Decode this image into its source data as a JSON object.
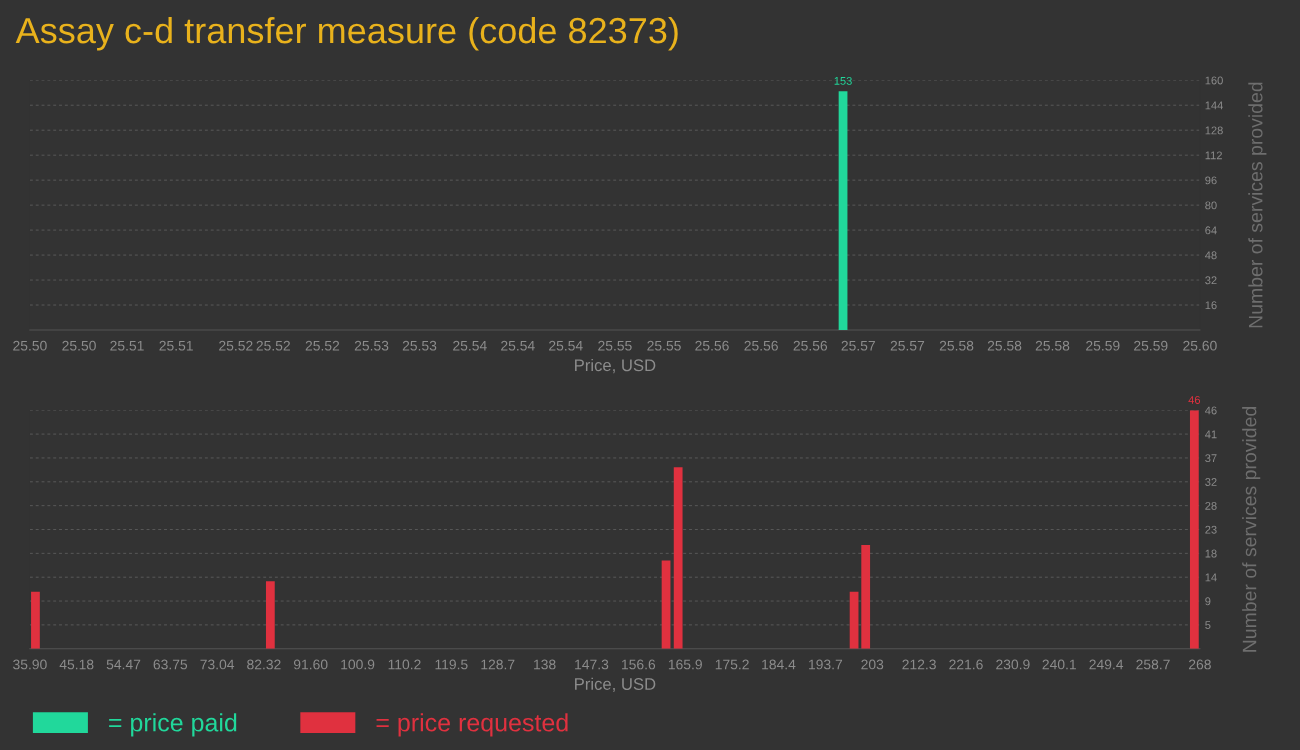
{
  "chart_data": [
    {
      "type": "bar",
      "title": "Assay c-d transfer measure (code 82373)",
      "xlabel": "Price, USD",
      "ylabel": "Number of services provided",
      "x": [
        25.567
      ],
      "series": [
        {
          "name": "= price paid",
          "color": "#21d89b",
          "values": [
            153
          ],
          "value_labels": [
            "153"
          ]
        }
      ],
      "xlim": [
        25.4975,
        25.5975
      ],
      "xticks": [
        {
          "value": 25.4975,
          "label": "25.50"
        },
        {
          "value": 25.5017,
          "label": "25.50"
        },
        {
          "value": 25.5058,
          "label": "25.51"
        },
        {
          "value": 25.51,
          "label": "25.51"
        },
        {
          "value": 25.5151,
          "label": "25.52"
        },
        {
          "value": 25.5183,
          "label": "25.52"
        },
        {
          "value": 25.5225,
          "label": "25.52"
        },
        {
          "value": 25.5267,
          "label": "25.53"
        },
        {
          "value": 25.5308,
          "label": "25.53"
        },
        {
          "value": 25.5351,
          "label": "25.54"
        },
        {
          "value": 25.5392,
          "label": "25.54"
        },
        {
          "value": 25.5433,
          "label": "25.54"
        },
        {
          "value": 25.5475,
          "label": "25.55"
        },
        {
          "value": 25.5517,
          "label": "25.55"
        },
        {
          "value": 25.5558,
          "label": "25.56"
        },
        {
          "value": 25.56,
          "label": "25.56"
        },
        {
          "value": 25.5642,
          "label": "25.56"
        },
        {
          "value": 25.5683,
          "label": "25.57"
        },
        {
          "value": 25.5725,
          "label": "25.57"
        },
        {
          "value": 25.5767,
          "label": "25.58"
        },
        {
          "value": 25.5808,
          "label": "25.58"
        },
        {
          "value": 25.5849,
          "label": "25.58"
        },
        {
          "value": 25.5892,
          "label": "25.59"
        },
        {
          "value": 25.5933,
          "label": "25.59"
        },
        {
          "value": 25.5975,
          "label": "25.60"
        }
      ],
      "ylim": [
        0,
        160
      ],
      "yticks": [
        16,
        32,
        48,
        64,
        80,
        96,
        112,
        128,
        144,
        160
      ],
      "grid": "y",
      "legend": "bottom left"
    },
    {
      "type": "bar",
      "xlabel": "Price, USD",
      "ylabel": "Number of services provided",
      "x": [
        37.0,
        83.6,
        162.1,
        164.5,
        199.4,
        201.7,
        266.9
      ],
      "series": [
        {
          "name": "= price requested",
          "color": "#e0313f",
          "values": [
            11,
            13,
            17,
            35,
            11,
            20,
            46
          ],
          "value_labels": [
            null,
            null,
            null,
            null,
            null,
            null,
            "46"
          ]
        }
      ],
      "xlim": [
        35.9,
        268
      ],
      "xticks": [
        {
          "value": 35.9,
          "label": "35.90"
        },
        {
          "value": 45.18,
          "label": "45.18"
        },
        {
          "value": 54.47,
          "label": "54.47"
        },
        {
          "value": 63.75,
          "label": "63.75"
        },
        {
          "value": 73.04,
          "label": "73.04"
        },
        {
          "value": 82.32,
          "label": "82.32"
        },
        {
          "value": 91.6,
          "label": "91.60"
        },
        {
          "value": 100.9,
          "label": "100.9"
        },
        {
          "value": 110.2,
          "label": "110.2"
        },
        {
          "value": 119.5,
          "label": "119.5"
        },
        {
          "value": 128.7,
          "label": "128.7"
        },
        {
          "value": 138,
          "label": "138"
        },
        {
          "value": 147.3,
          "label": "147.3"
        },
        {
          "value": 156.6,
          "label": "156.6"
        },
        {
          "value": 165.9,
          "label": "165.9"
        },
        {
          "value": 175.2,
          "label": "175.2"
        },
        {
          "value": 184.4,
          "label": "184.4"
        },
        {
          "value": 193.7,
          "label": "193.7"
        },
        {
          "value": 203,
          "label": "203"
        },
        {
          "value": 212.3,
          "label": "212.3"
        },
        {
          "value": 221.6,
          "label": "221.6"
        },
        {
          "value": 230.9,
          "label": "230.9"
        },
        {
          "value": 240.1,
          "label": "240.1"
        },
        {
          "value": 249.4,
          "label": "249.4"
        },
        {
          "value": 258.7,
          "label": "258.7"
        },
        {
          "value": 268,
          "label": "268"
        }
      ],
      "ylim": [
        0,
        46
      ],
      "yticks": [
        {
          "value": 4.6,
          "label": "5"
        },
        {
          "value": 9.2,
          "label": "9"
        },
        {
          "value": 13.8,
          "label": "14"
        },
        {
          "value": 18.4,
          "label": "18"
        },
        {
          "value": 23,
          "label": "23"
        },
        {
          "value": 27.6,
          "label": "28"
        },
        {
          "value": 32.2,
          "label": "32"
        },
        {
          "value": 36.8,
          "label": "37"
        },
        {
          "value": 41.4,
          "label": "41"
        },
        {
          "value": 46,
          "label": "46"
        }
      ],
      "grid": "y",
      "legend": "bottom left"
    }
  ]
}
